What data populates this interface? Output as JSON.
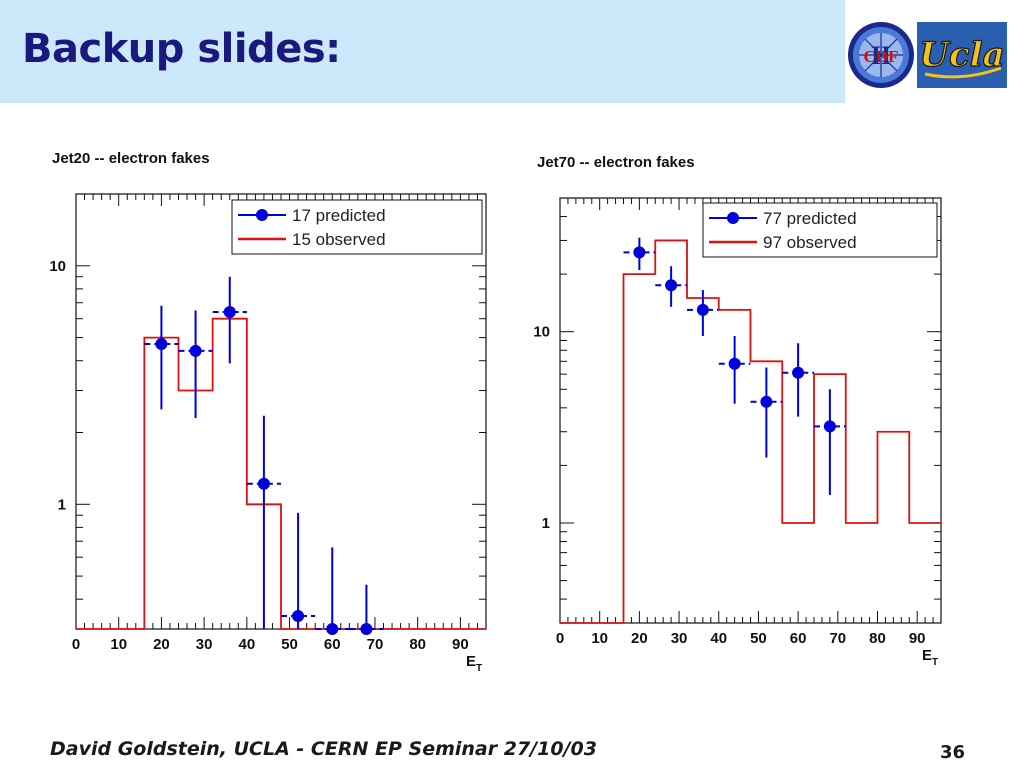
{
  "slide": {
    "title": "Backup slides:",
    "footer": "David Goldstein, UCLA - CERN EP Seminar 27/10/03",
    "page_number": "36"
  },
  "logos": {
    "cdf": {
      "text": "CDF",
      "numeral": "II"
    },
    "ucla": {
      "text": "Ucla"
    }
  },
  "colors": {
    "header_band": "#cce8fb",
    "title_text": "#1a1a7e",
    "predicted": "#0000dd",
    "observed": "#dd1111"
  },
  "chart_data": [
    {
      "type": "histogram",
      "title": "Jet20 -- electron fakes",
      "xlabel": "E",
      "xlabel_sub": "T",
      "yscale": "log",
      "xlim": [
        0,
        96
      ],
      "ylim": [
        0.3,
        20
      ],
      "xticks": [
        0,
        10,
        20,
        30,
        40,
        50,
        60,
        70,
        80,
        90
      ],
      "xtick_labels": [
        "0",
        "10",
        "20",
        "30",
        "40",
        "50",
        "60",
        "70",
        "80",
        "90"
      ],
      "yticks": [
        1,
        10
      ],
      "ytick_labels": [
        "1",
        "10"
      ],
      "legend": {
        "position": "top-right"
      },
      "observed": {
        "label": "15 observed",
        "bin_edges": [
          0,
          16,
          24,
          32,
          40,
          48,
          56,
          64,
          72,
          80,
          88,
          96
        ],
        "values": [
          0,
          5,
          3,
          6,
          1,
          0,
          0,
          0,
          0,
          0,
          0
        ]
      },
      "predicted": {
        "label": "17 predicted",
        "points": [
          {
            "x": 20,
            "y": 4.7,
            "ylo": 2.5,
            "yhi": 6.8
          },
          {
            "x": 28,
            "y": 4.4,
            "ylo": 2.3,
            "yhi": 6.5
          },
          {
            "x": 36,
            "y": 6.4,
            "ylo": 3.9,
            "yhi": 9.0
          },
          {
            "x": 44,
            "y": 1.22,
            "ylo": 0.3,
            "yhi": 2.35
          },
          {
            "x": 52,
            "y": 0.34,
            "ylo": 0.3,
            "yhi": 0.92
          },
          {
            "x": 60,
            "y": 0.3,
            "ylo": 0.3,
            "yhi": 0.66
          },
          {
            "x": 68,
            "y": 0.3,
            "ylo": 0.3,
            "yhi": 0.46
          }
        ]
      }
    },
    {
      "type": "histogram",
      "title": "Jet70 -- electron fakes",
      "xlabel": "E",
      "xlabel_sub": "T",
      "yscale": "log",
      "xlim": [
        0,
        96
      ],
      "ylim": [
        0.3,
        50
      ],
      "xticks": [
        0,
        10,
        20,
        30,
        40,
        50,
        60,
        70,
        80,
        90
      ],
      "xtick_labels": [
        "0",
        "10",
        "20",
        "30",
        "40",
        "50",
        "60",
        "70",
        "80",
        "90"
      ],
      "yticks": [
        1,
        10
      ],
      "ytick_labels": [
        "1",
        "10"
      ],
      "legend": {
        "position": "top-right"
      },
      "observed": {
        "label": "97 observed",
        "bin_edges": [
          0,
          16,
          24,
          32,
          40,
          48,
          56,
          64,
          72,
          80,
          88,
          96
        ],
        "values": [
          0,
          20,
          30,
          15,
          13,
          7,
          1,
          6,
          1,
          3,
          1
        ]
      },
      "predicted": {
        "label": "77 predicted",
        "points": [
          {
            "x": 20,
            "y": 26,
            "ylo": 21,
            "yhi": 31
          },
          {
            "x": 28,
            "y": 17.5,
            "ylo": 13.5,
            "yhi": 22
          },
          {
            "x": 36,
            "y": 13,
            "ylo": 9.5,
            "yhi": 16.5
          },
          {
            "x": 44,
            "y": 6.8,
            "ylo": 4.2,
            "yhi": 9.5
          },
          {
            "x": 52,
            "y": 4.3,
            "ylo": 2.2,
            "yhi": 6.5
          },
          {
            "x": 60,
            "y": 6.1,
            "ylo": 3.6,
            "yhi": 8.7
          },
          {
            "x": 68,
            "y": 3.2,
            "ylo": 1.4,
            "yhi": 5.0
          }
        ]
      }
    }
  ]
}
